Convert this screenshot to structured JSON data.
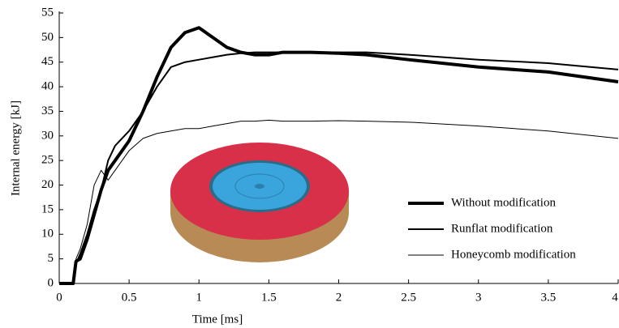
{
  "chart_data": {
    "type": "line",
    "xlabel": "Time [ms]",
    "ylabel": "Internal energy [kJ]",
    "x": [
      0,
      0.05,
      0.1,
      0.12,
      0.15,
      0.2,
      0.25,
      0.3,
      0.35,
      0.4,
      0.5,
      0.6,
      0.7,
      0.8,
      0.9,
      1.0,
      1.1,
      1.2,
      1.3,
      1.4,
      1.5,
      1.6,
      1.8,
      2.0,
      2.2,
      2.5,
      3.0,
      3.5,
      4.0
    ],
    "series": [
      {
        "name": "Without modification",
        "color": "#000000",
        "width": 4,
        "values": [
          0,
          0,
          0,
          4.5,
          5,
          9,
          14,
          19,
          23,
          25,
          29,
          35,
          42,
          48,
          51,
          52,
          50,
          48,
          47,
          46.5,
          46.5,
          47,
          47,
          46.8,
          46.5,
          45.5,
          44,
          43,
          41
        ]
      },
      {
        "name": "Runflat modification",
        "color": "#000000",
        "width": 2,
        "values": [
          0,
          0,
          0,
          4,
          6,
          10,
          15,
          19,
          25,
          28,
          31,
          35,
          40,
          44,
          45,
          45.5,
          46,
          46.5,
          46.8,
          47,
          47,
          47,
          47,
          47,
          47,
          46.5,
          45.5,
          44.8,
          43.5
        ]
      },
      {
        "name": "Honeycomb modification",
        "color": "#000000",
        "width": 1,
        "values": [
          0,
          0,
          0,
          5,
          7,
          12,
          20,
          23,
          21,
          23,
          27,
          29.5,
          30.5,
          31,
          31.5,
          31.5,
          32,
          32.5,
          33,
          33,
          33.2,
          33,
          33,
          33.1,
          33,
          32.8,
          32,
          31,
          29.5
        ]
      }
    ],
    "xlim": [
      0,
      4
    ],
    "xticks": [
      0,
      0.5,
      1,
      1.5,
      2,
      2.5,
      3,
      3.5,
      4
    ],
    "ylim": [
      0,
      55
    ],
    "yticks": [
      0,
      5,
      10,
      15,
      20,
      25,
      30,
      35,
      40,
      45,
      50,
      55
    ],
    "grid": false,
    "legend": "lower right"
  }
}
